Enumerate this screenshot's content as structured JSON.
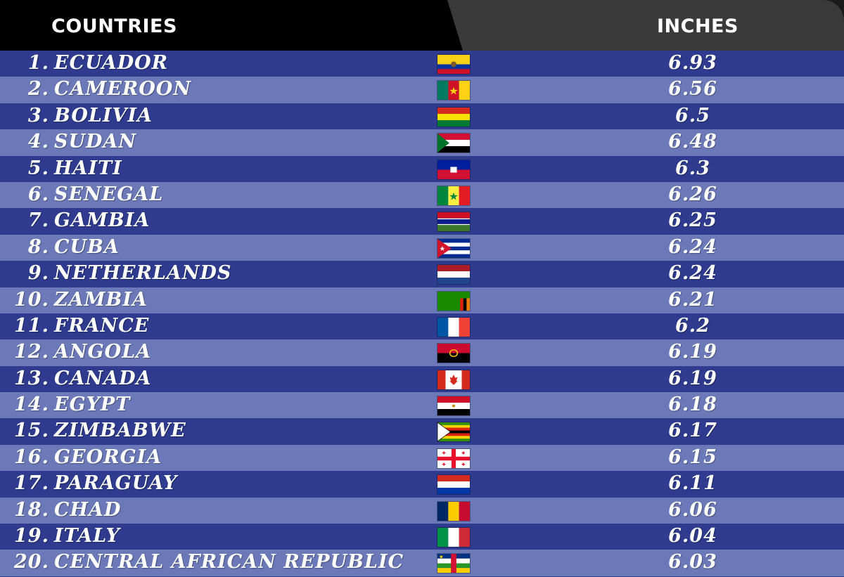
{
  "header": {
    "countries_label": "COUNTRIES",
    "inches_label": "INCHES"
  },
  "chart_data": {
    "type": "table",
    "columns": [
      "COUNTRIES",
      "INCHES"
    ],
    "rows": [
      {
        "rank": "1.",
        "country": "ECUADOR",
        "value": "6.93",
        "flag": "ecuador-flag-icon"
      },
      {
        "rank": "2.",
        "country": "CAMEROON",
        "value": "6.56",
        "flag": "cameroon-flag-icon"
      },
      {
        "rank": "3.",
        "country": "BOLIVIA",
        "value": "6.5",
        "flag": "bolivia-flag-icon"
      },
      {
        "rank": "4.",
        "country": "SUDAN",
        "value": "6.48",
        "flag": "sudan-flag-icon"
      },
      {
        "rank": "5.",
        "country": "HAITI",
        "value": "6.3",
        "flag": "haiti-flag-icon"
      },
      {
        "rank": "6.",
        "country": "SENEGAL",
        "value": "6.26",
        "flag": "senegal-flag-icon"
      },
      {
        "rank": "7.",
        "country": "GAMBIA",
        "value": "6.25",
        "flag": "gambia-flag-icon"
      },
      {
        "rank": "8.",
        "country": "CUBA",
        "value": "6.24",
        "flag": "cuba-flag-icon"
      },
      {
        "rank": "9.",
        "country": "NETHERLANDS",
        "value": "6.24",
        "flag": "netherlands-flag-icon"
      },
      {
        "rank": "10.",
        "country": "ZAMBIA",
        "value": "6.21",
        "flag": "zambia-flag-icon"
      },
      {
        "rank": "11.",
        "country": "FRANCE",
        "value": "6.2",
        "flag": "france-flag-icon"
      },
      {
        "rank": "12.",
        "country": "ANGOLA",
        "value": "6.19",
        "flag": "angola-flag-icon"
      },
      {
        "rank": "13.",
        "country": "CANADA",
        "value": "6.19",
        "flag": "canada-flag-icon"
      },
      {
        "rank": "14.",
        "country": "EGYPT",
        "value": "6.18",
        "flag": "egypt-flag-icon"
      },
      {
        "rank": "15.",
        "country": "ZIMBABWE",
        "value": "6.17",
        "flag": "zimbabwe-flag-icon"
      },
      {
        "rank": "16.",
        "country": "GEORGIA",
        "value": "6.15",
        "flag": "georgia-flag-icon"
      },
      {
        "rank": "17.",
        "country": "PARAGUAY",
        "value": "6.11",
        "flag": "paraguay-flag-icon"
      },
      {
        "rank": "18.",
        "country": "CHAD",
        "value": "6.06",
        "flag": "chad-flag-icon"
      },
      {
        "rank": "19.",
        "country": "ITALY",
        "value": "6.04",
        "flag": "italy-flag-icon"
      },
      {
        "rank": "20.",
        "country": "CENTRAL AFRICAN REPUBLIC",
        "value": "6.03",
        "flag": "central-african-republic-flag-icon"
      }
    ]
  },
  "colors": {
    "row_dark": "#2e3b8f",
    "row_light": "#6c79b8",
    "header_left": "#000000",
    "header_right": "#3a3a3a",
    "text": "#ffffff"
  }
}
